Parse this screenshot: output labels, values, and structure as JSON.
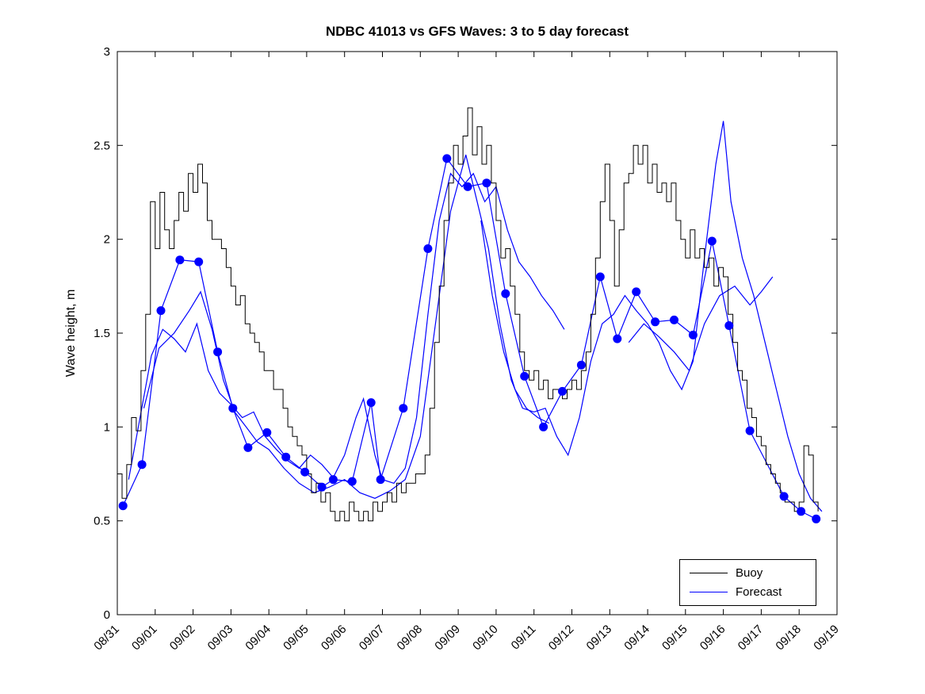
{
  "chart_data": {
    "type": "line",
    "title": "NDBC 41013 vs GFS Waves: 3 to 5 day forecast",
    "xlabel": "",
    "ylabel": "Wave height, m",
    "ylim": [
      0,
      3
    ],
    "yticks": [
      0,
      0.5,
      1,
      1.5,
      2,
      2.5,
      3
    ],
    "ytick_labels": [
      "0",
      "0.5",
      "1",
      "1.5",
      "2",
      "2.5",
      "3"
    ],
    "x_range_days": [
      0,
      19
    ],
    "xtick_labels": [
      "08/31",
      "09/01",
      "09/02",
      "09/03",
      "09/04",
      "09/05",
      "09/06",
      "09/07",
      "09/08",
      "09/09",
      "09/10",
      "09/11",
      "09/12",
      "09/13",
      "09/14",
      "09/15",
      "09/16",
      "09/17",
      "09/18",
      "09/19"
    ],
    "grid": false,
    "colors": {
      "buoy": "#000000",
      "forecast": "#0000ff",
      "background": "#ffffff"
    },
    "legend": {
      "position": "bottom-right",
      "entries": [
        {
          "label": "Buoy",
          "color": "#000000"
        },
        {
          "label": "Forecast",
          "color": "#0000ff"
        }
      ]
    },
    "series": {
      "buoy": {
        "name": "Buoy",
        "style": "stairs",
        "x0": 0,
        "dx": 0.125,
        "y": [
          0.75,
          0.62,
          0.8,
          1.05,
          0.98,
          1.3,
          1.6,
          2.2,
          1.95,
          2.25,
          2.05,
          1.95,
          2.1,
          2.25,
          2.15,
          2.35,
          2.25,
          2.4,
          2.3,
          2.1,
          2.0,
          2.0,
          1.95,
          1.85,
          1.75,
          1.65,
          1.7,
          1.55,
          1.5,
          1.45,
          1.4,
          1.3,
          1.3,
          1.2,
          1.2,
          1.1,
          1.0,
          0.95,
          0.9,
          0.85,
          0.75,
          0.65,
          0.7,
          0.6,
          0.65,
          0.55,
          0.5,
          0.55,
          0.5,
          0.6,
          0.55,
          0.5,
          0.55,
          0.5,
          0.6,
          0.55,
          0.6,
          0.65,
          0.6,
          0.7,
          0.65,
          0.7,
          0.7,
          0.75,
          0.75,
          0.85,
          1.1,
          1.45,
          1.75,
          2.1,
          2.3,
          2.5,
          2.4,
          2.55,
          2.7,
          2.45,
          2.6,
          2.4,
          2.5,
          2.3,
          2.1,
          1.9,
          1.95,
          1.75,
          1.6,
          1.4,
          1.3,
          1.25,
          1.3,
          1.2,
          1.25,
          1.15,
          1.2,
          1.2,
          1.15,
          1.2,
          1.25,
          1.2,
          1.3,
          1.4,
          1.6,
          1.9,
          2.2,
          2.4,
          2.1,
          1.75,
          2.05,
          2.3,
          2.35,
          2.5,
          2.4,
          2.5,
          2.3,
          2.4,
          2.25,
          2.3,
          2.2,
          2.3,
          2.1,
          2.0,
          1.9,
          2.05,
          1.9,
          1.95,
          1.85,
          1.9,
          1.75,
          1.85,
          1.8,
          1.6,
          1.45,
          1.3,
          1.25,
          1.1,
          1.05,
          0.95,
          0.9,
          0.8,
          0.75,
          0.7,
          0.65,
          0.6,
          0.6,
          0.55,
          0.6,
          0.9,
          0.85,
          0.6,
          0.55
        ]
      },
      "forecast_markers": {
        "name": "Forecast",
        "marker": "filled-circle",
        "size": 5.5,
        "x": [
          0.15,
          0.65,
          1.15,
          1.65,
          2.15,
          2.65,
          3.05,
          3.45,
          3.95,
          4.45,
          4.95,
          5.4,
          5.7,
          6.2,
          6.7,
          6.95,
          7.55,
          8.2,
          8.7,
          9.25,
          9.75,
          10.25,
          10.75,
          11.25,
          11.75,
          12.25,
          12.75,
          13.2,
          13.7,
          14.2,
          14.7,
          15.2,
          15.7,
          16.15,
          16.7,
          17.6,
          18.05,
          18.45
        ],
        "y": [
          0.58,
          0.8,
          1.62,
          1.89,
          1.88,
          1.4,
          1.1,
          0.89,
          0.97,
          0.84,
          0.76,
          0.68,
          0.72,
          0.71,
          1.13,
          0.72,
          1.1,
          1.95,
          2.43,
          2.28,
          2.3,
          1.71,
          1.27,
          1.0,
          1.19,
          1.33,
          1.8,
          1.47,
          1.72,
          1.56,
          1.57,
          1.49,
          1.99,
          1.54,
          0.98,
          0.63,
          0.55,
          0.51
        ]
      },
      "forecast_lines": [
        {
          "x": [
            0.3,
            0.6,
            0.9,
            1.2,
            1.5,
            1.8,
            2.1,
            2.4,
            2.7,
            3.0,
            3.3,
            3.6,
            3.9,
            4.2,
            4.5,
            4.8,
            5.1,
            5.4,
            5.7,
            6.0,
            6.3,
            6.5,
            6.8,
            7.0,
            7.3,
            7.6,
            7.9,
            8.2,
            8.5,
            8.8,
            9.1,
            9.4,
            9.7,
            10.0,
            10.3,
            10.6,
            10.9,
            11.2,
            11.5,
            11.8
          ],
          "y": [
            0.72,
            1.05,
            1.38,
            1.52,
            1.47,
            1.4,
            1.55,
            1.3,
            1.18,
            1.12,
            1.05,
            1.08,
            0.95,
            0.88,
            0.82,
            0.78,
            0.85,
            0.8,
            0.73,
            0.85,
            1.05,
            1.15,
            0.85,
            0.72,
            0.7,
            0.78,
            1.05,
            1.6,
            2.1,
            2.35,
            2.28,
            2.35,
            2.2,
            2.28,
            2.05,
            1.88,
            1.8,
            1.7,
            1.62,
            1.52
          ]
        },
        {
          "x": [
            0.7,
            1.1,
            1.5,
            1.9,
            2.2,
            2.5,
            2.8,
            3.1,
            3.4,
            3.7,
            4.0,
            4.4,
            4.8,
            5.2,
            5.6,
            6.0,
            6.4,
            6.8,
            7.2,
            7.6,
            8.0,
            8.4,
            8.8,
            9.2,
            9.5,
            9.8,
            10.1,
            10.4,
            10.7,
            11.0,
            11.3,
            11.6,
            11.9,
            12.2,
            12.5,
            12.8,
            13.1,
            13.4,
            13.7,
            14.0,
            14.3,
            14.6,
            14.9,
            15.2,
            15.5,
            15.8,
            16.0,
            16.2,
            16.5,
            16.8,
            17.1,
            17.4,
            17.7,
            18.0,
            18.3,
            18.6
          ],
          "y": [
            1.1,
            1.42,
            1.5,
            1.62,
            1.72,
            1.52,
            1.25,
            1.08,
            1.0,
            0.92,
            0.88,
            0.78,
            0.7,
            0.65,
            0.68,
            0.72,
            0.65,
            0.62,
            0.66,
            0.72,
            0.95,
            1.55,
            2.15,
            2.45,
            2.2,
            1.95,
            1.55,
            1.25,
            1.1,
            1.08,
            1.1,
            0.95,
            0.85,
            1.05,
            1.35,
            1.55,
            1.6,
            1.7,
            1.62,
            1.55,
            1.45,
            1.3,
            1.2,
            1.35,
            1.9,
            2.4,
            2.63,
            2.2,
            1.9,
            1.7,
            1.45,
            1.2,
            0.95,
            0.75,
            0.62,
            0.55
          ]
        },
        {
          "x": [
            13.5,
            13.9,
            14.3,
            14.7,
            15.1,
            15.5,
            15.9,
            16.3,
            16.7,
            17.0,
            17.3
          ],
          "y": [
            1.45,
            1.55,
            1.48,
            1.4,
            1.3,
            1.55,
            1.7,
            1.75,
            1.65,
            1.72,
            1.8
          ]
        },
        {
          "x": [
            9.6,
            9.9,
            10.2,
            10.5,
            10.8,
            11.1,
            11.4
          ],
          "y": [
            2.1,
            1.7,
            1.4,
            1.2,
            1.1,
            1.05,
            1.02
          ]
        }
      ]
    }
  }
}
